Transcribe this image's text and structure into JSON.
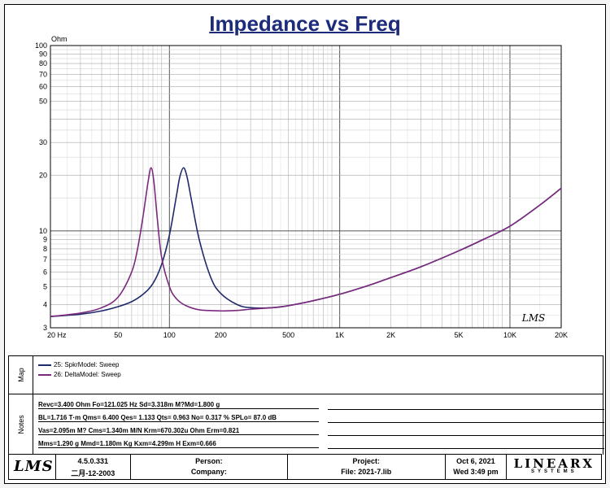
{
  "title": "Impedance vs Freq",
  "chart_data": {
    "type": "line",
    "title": "Impedance vs Freq",
    "ylabel": "Ohm",
    "xscale": "log",
    "yscale": "log",
    "xlim": [
      20,
      20000
    ],
    "ylim": [
      3,
      100
    ],
    "grid": true,
    "x_ticks": [
      {
        "value": 20,
        "label": "20 Hz"
      },
      {
        "value": 50,
        "label": "50"
      },
      {
        "value": 100,
        "label": "100"
      },
      {
        "value": 200,
        "label": "200"
      },
      {
        "value": 500,
        "label": "500"
      },
      {
        "value": 1000,
        "label": "1K"
      },
      {
        "value": 2000,
        "label": "2K"
      },
      {
        "value": 5000,
        "label": "5K"
      },
      {
        "value": 10000,
        "label": "10K"
      },
      {
        "value": 20000,
        "label": "20K"
      }
    ],
    "y_ticks": [
      {
        "value": 3,
        "label": "3"
      },
      {
        "value": 4,
        "label": "4"
      },
      {
        "value": 5,
        "label": "5"
      },
      {
        "value": 6,
        "label": "6"
      },
      {
        "value": 7,
        "label": "7"
      },
      {
        "value": 8,
        "label": "8"
      },
      {
        "value": 9,
        "label": "9"
      },
      {
        "value": 10,
        "label": "10"
      },
      {
        "value": 20,
        "label": "20"
      },
      {
        "value": 30,
        "label": "30"
      },
      {
        "value": 50,
        "label": "50"
      },
      {
        "value": 60,
        "label": "60"
      },
      {
        "value": 70,
        "label": "70"
      },
      {
        "value": 80,
        "label": "80"
      },
      {
        "value": 90,
        "label": "90"
      },
      {
        "value": 100,
        "label": "100"
      }
    ],
    "series": [
      {
        "name": "25: SpkrModel: Sweep",
        "color": "#1f2a6b",
        "x": [
          20,
          30,
          40,
          50,
          60,
          70,
          80,
          90,
          100,
          110,
          115,
          121,
          127,
          135,
          150,
          175,
          200,
          250,
          300,
          400,
          500,
          700,
          1000,
          1500,
          2000,
          3000,
          5000,
          7000,
          10000,
          15000,
          20000
        ],
        "y": [
          3.45,
          3.55,
          3.7,
          3.9,
          4.15,
          4.55,
          5.2,
          6.6,
          9.5,
          15.5,
          19.5,
          21.9,
          19.5,
          14.5,
          8.9,
          5.6,
          4.6,
          4.0,
          3.85,
          3.85,
          3.95,
          4.2,
          4.55,
          5.1,
          5.6,
          6.4,
          7.8,
          9.0,
          10.6,
          13.8,
          17.0
        ]
      },
      {
        "name": "26: DeltaModel: Sweep",
        "color": "#7b2a7e",
        "x": [
          20,
          30,
          40,
          50,
          60,
          65,
          70,
          75,
          78,
          81,
          85,
          90,
          100,
          110,
          125,
          150,
          200,
          250,
          300,
          400,
          500,
          700,
          1000,
          1500,
          2000,
          3000,
          5000,
          7000,
          10000,
          15000,
          20000
        ],
        "y": [
          3.45,
          3.6,
          3.85,
          4.4,
          6.0,
          8.0,
          12.0,
          18.5,
          21.9,
          18.5,
          11.5,
          7.2,
          5.0,
          4.3,
          3.95,
          3.75,
          3.7,
          3.72,
          3.78,
          3.85,
          3.95,
          4.2,
          4.55,
          5.1,
          5.6,
          6.4,
          7.8,
          9.0,
          10.6,
          13.8,
          17.0
        ]
      }
    ]
  },
  "map": {
    "label": "Map",
    "legend": [
      {
        "text": "25: SpkrModel: Sweep",
        "color": "#1f2a6b"
      },
      {
        "text": "26: DeltaModel: Sweep",
        "color": "#7b2a7e"
      }
    ]
  },
  "notes": {
    "label": "Notes",
    "lines": [
      "Revc=3.400 Ohm  Fo=121.025 Hz  Sd=3.318m M?Md=1.800 g",
      "BL=1.716 T·m  Qms= 6.400  Qes= 1.133  Qts= 0.963  No= 0.317 %  SPLo= 87.0 dB",
      "Vas=2.095m M? Cms=1.340m M/N  Krm=670.302u Ohm  Erm=0.821",
      "Mms=1.290 g  Mmd=1.180m Kg  Kxm=4.299m H  Exm=0.666"
    ]
  },
  "footer": {
    "logo": "LMS",
    "version": "4.5.0.331",
    "date_built": "二月-12-2003",
    "person_label": "Person:",
    "company_label": "Company:",
    "project_label": "Project:",
    "file_label": "File: 2021-7.lib",
    "date": "Oct  6, 2021",
    "time": "Wed  3:49 pm",
    "brand": "LINEARX",
    "brand_sub": "SYSTEMS"
  },
  "watermark": "LMS"
}
